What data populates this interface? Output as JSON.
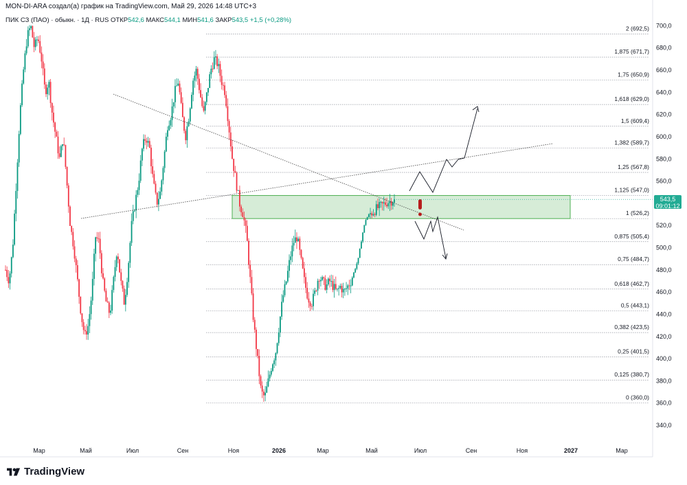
{
  "header": {
    "attribution": "MON-DI-ARA создал(а) график на TradingView.com, Май 29, 2026 14:48 UTC+3",
    "symbol": "ПИК СЗ (ПАО) · обыкн. · 1Д · RUS",
    "open_label": "ОТКР",
    "open_value": "542,6",
    "high_label": "МАКС",
    "high_value": "544,1",
    "low_label": "МИН",
    "low_value": "541,6",
    "close_label": "ЗАКР",
    "close_value": "543,5",
    "change": "+1,5 (+0,28%)"
  },
  "price_tag": {
    "price": "543,5",
    "countdown": "09:01:12"
  },
  "logo_text": "TradingView",
  "colors": {
    "up": "#089981",
    "down": "#f23645",
    "zone_fill": "#c8e6c9",
    "zone_border": "#4caf50",
    "tag": "#22ab94",
    "signal": "#b71c1c"
  },
  "chart_data": {
    "type": "candlestick",
    "y_ticks": [
      340,
      360,
      380,
      400,
      420,
      440,
      460,
      480,
      500,
      520,
      540,
      560,
      580,
      600,
      620,
      640,
      660,
      680,
      700
    ],
    "ylim": [
      327,
      712
    ],
    "x_ticks": [
      {
        "label": "Мар",
        "bold": false
      },
      {
        "label": "Май",
        "bold": false
      },
      {
        "label": "Июл",
        "bold": false
      },
      {
        "label": "Сен",
        "bold": false
      },
      {
        "label": "Ноя",
        "bold": false
      },
      {
        "label": "2026",
        "bold": true
      },
      {
        "label": "Мар",
        "bold": false
      },
      {
        "label": "Май",
        "bold": false
      },
      {
        "label": "Июл",
        "bold": false
      },
      {
        "label": "Сен",
        "bold": false
      },
      {
        "label": "Ноя",
        "bold": false
      },
      {
        "label": "2027",
        "bold": true
      },
      {
        "label": "Мар",
        "bold": false
      }
    ],
    "fib_levels": [
      {
        "ratio": "2",
        "price": 692.5,
        "label": "2 (692,5)"
      },
      {
        "ratio": "1,875",
        "price": 671.7,
        "label": "1,875 (671,7)"
      },
      {
        "ratio": "1,75",
        "price": 650.9,
        "label": "1,75 (650,9)"
      },
      {
        "ratio": "1,618",
        "price": 629.0,
        "label": "1,618 (629,0)"
      },
      {
        "ratio": "1,5",
        "price": 609.4,
        "label": "1,5 (609,4)"
      },
      {
        "ratio": "1,382",
        "price": 589.7,
        "label": "1,382 (589,7)"
      },
      {
        "ratio": "1,25",
        "price": 567.8,
        "label": "1,25 (567,8)"
      },
      {
        "ratio": "1,125",
        "price": 547.0,
        "label": "1,125 (547,0)"
      },
      {
        "ratio": "1",
        "price": 526.2,
        "label": "1 (526,2)"
      },
      {
        "ratio": "0,875",
        "price": 505.4,
        "label": "0,875 (505,4)"
      },
      {
        "ratio": "0,75",
        "price": 484.7,
        "label": "0,75 (484,7)"
      },
      {
        "ratio": "0,618",
        "price": 462.7,
        "label": "0,618 (462,7)"
      },
      {
        "ratio": "0,5",
        "price": 443.1,
        "label": "0,5 (443,1)"
      },
      {
        "ratio": "0,382",
        "price": 423.5,
        "label": "0,382 (423,5)"
      },
      {
        "ratio": "0,25",
        "price": 401.5,
        "label": "0,25 (401,5)"
      },
      {
        "ratio": "0,125",
        "price": 380.7,
        "label": "0,125 (380,7)"
      },
      {
        "ratio": "0",
        "price": 360.0,
        "label": "0 (360,0)"
      }
    ],
    "zone": {
      "price_low": 526.2,
      "price_high": 547.0
    },
    "last_price": 543.5,
    "price_path": [
      [
        0,
        480
      ],
      [
        2,
        470
      ],
      [
        4,
        500
      ],
      [
        6,
        560
      ],
      [
        8,
        620
      ],
      [
        10,
        660
      ],
      [
        12,
        690
      ],
      [
        14,
        700
      ],
      [
        16,
        680
      ],
      [
        18,
        690
      ],
      [
        20,
        670
      ],
      [
        22,
        640
      ],
      [
        24,
        650
      ],
      [
        26,
        620
      ],
      [
        28,
        600
      ],
      [
        30,
        580
      ],
      [
        32,
        600
      ],
      [
        34,
        560
      ],
      [
        36,
        520
      ],
      [
        38,
        500
      ],
      [
        40,
        470
      ],
      [
        42,
        440
      ],
      [
        44,
        420
      ],
      [
        46,
        430
      ],
      [
        48,
        460
      ],
      [
        50,
        510
      ],
      [
        52,
        505
      ],
      [
        54,
        470
      ],
      [
        56,
        450
      ],
      [
        58,
        440
      ],
      [
        60,
        470
      ],
      [
        62,
        500
      ],
      [
        64,
        470
      ],
      [
        66,
        450
      ],
      [
        68,
        480
      ],
      [
        70,
        520
      ],
      [
        72,
        540
      ],
      [
        74,
        560
      ],
      [
        76,
        590
      ],
      [
        78,
        600
      ],
      [
        80,
        590
      ],
      [
        82,
        560
      ],
      [
        84,
        540
      ],
      [
        86,
        550
      ],
      [
        88,
        580
      ],
      [
        90,
        610
      ],
      [
        92,
        620
      ],
      [
        94,
        640
      ],
      [
        96,
        650
      ],
      [
        98,
        620
      ],
      [
        100,
        600
      ],
      [
        102,
        620
      ],
      [
        104,
        650
      ],
      [
        106,
        660
      ],
      [
        108,
        640
      ],
      [
        110,
        620
      ],
      [
        112,
        640
      ],
      [
        114,
        660
      ],
      [
        116,
        670
      ],
      [
        118,
        665
      ],
      [
        120,
        650
      ],
      [
        122,
        640
      ],
      [
        124,
        610
      ],
      [
        126,
        580
      ],
      [
        128,
        560
      ],
      [
        130,
        540
      ],
      [
        132,
        530
      ],
      [
        134,
        510
      ],
      [
        136,
        470
      ],
      [
        138,
        430
      ],
      [
        140,
        400
      ],
      [
        142,
        370
      ],
      [
        144,
        365
      ],
      [
        146,
        380
      ],
      [
        148,
        395
      ],
      [
        150,
        405
      ],
      [
        152,
        430
      ],
      [
        154,
        455
      ],
      [
        156,
        470
      ],
      [
        158,
        490
      ],
      [
        160,
        505
      ],
      [
        162,
        510
      ],
      [
        164,
        490
      ],
      [
        166,
        470
      ],
      [
        168,
        455
      ],
      [
        170,
        450
      ],
      [
        172,
        460
      ],
      [
        174,
        475
      ],
      [
        176,
        470
      ],
      [
        178,
        465
      ],
      [
        180,
        470
      ],
      [
        182,
        465
      ],
      [
        184,
        460
      ],
      [
        186,
        465
      ],
      [
        188,
        460
      ],
      [
        190,
        465
      ],
      [
        192,
        470
      ],
      [
        194,
        480
      ],
      [
        196,
        490
      ],
      [
        198,
        510
      ],
      [
        200,
        525
      ],
      [
        202,
        530
      ],
      [
        204,
        532
      ],
      [
        206,
        535
      ],
      [
        208,
        537
      ],
      [
        210,
        539
      ],
      [
        212,
        541
      ],
      [
        214,
        542
      ],
      [
        216,
        543.5
      ]
    ]
  }
}
